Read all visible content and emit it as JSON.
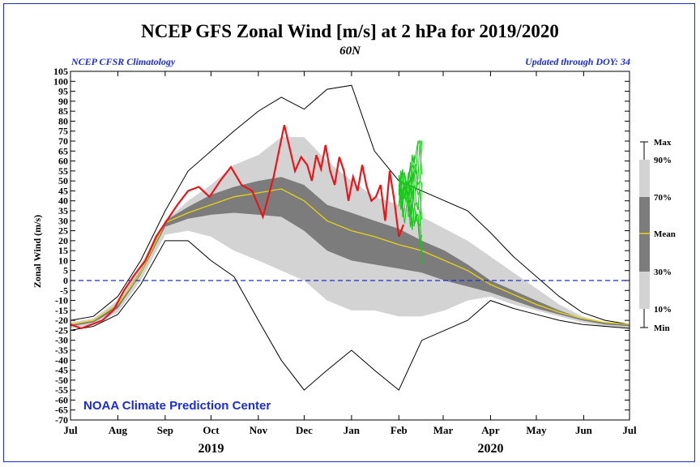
{
  "chart_data": {
    "type": "area",
    "title": "NCEP GFS Zonal Wind [m/s] at 2 hPa for 2019/2020",
    "subtitle": "60N",
    "left_note": "NCEP CFSR Climatology",
    "right_note": "Updated through DOY:  34",
    "credit": "NOAA Climate Prediction Center",
    "ylabel": "Zonal Wind (m/s)",
    "ylim": [
      -70,
      105
    ],
    "yticks": [
      "105",
      "100",
      "95",
      "90",
      "85",
      "80",
      "75",
      "70",
      "65",
      "60",
      "55",
      "50",
      "45",
      "40",
      "35",
      "30",
      "25",
      "20",
      "15",
      "10",
      "5",
      "0",
      "-5",
      "-10",
      "-15",
      "-20",
      "-25",
      "-30",
      "-35",
      "-40",
      "-45",
      "-50",
      "-55",
      "-60",
      "-65",
      "-70"
    ],
    "month_ticks": [
      "Jul",
      "Aug",
      "Sep",
      "Oct",
      "Nov",
      "Dec",
      "Jan",
      "Feb",
      "Mar",
      "Apr",
      "May",
      "Jun",
      "Jul"
    ],
    "years": [
      "2019",
      "2020"
    ],
    "x_day": [
      0,
      15,
      31,
      46,
      62,
      77,
      92,
      107,
      123,
      138,
      153,
      168,
      184,
      199,
      215,
      230,
      245,
      260,
      275,
      290,
      305,
      320,
      335,
      350,
      366
    ],
    "series": [
      {
        "name": "Max",
        "values": [
          -20,
          -18,
          -8,
          10,
          35,
          55,
          65,
          75,
          85,
          92,
          86,
          96,
          98,
          65,
          50,
          45,
          40,
          35,
          24,
          12,
          2,
          -8,
          -16,
          -20,
          -22
        ]
      },
      {
        "name": "90%",
        "values": [
          -21,
          -19,
          -10,
          8,
          30,
          40,
          48,
          58,
          63,
          72,
          72,
          60,
          50,
          42,
          38,
          32,
          26,
          20,
          12,
          4,
          -4,
          -12,
          -18,
          -21,
          -22
        ]
      },
      {
        "name": "70%",
        "values": [
          -22,
          -20,
          -12,
          5,
          30,
          37,
          43,
          47,
          50,
          52,
          48,
          38,
          34,
          30,
          26,
          20,
          15,
          8,
          0,
          -5,
          -10,
          -15,
          -19,
          -21,
          -22
        ]
      },
      {
        "name": "Mean",
        "values": [
          -22,
          -20,
          -12,
          4,
          29,
          34,
          38,
          42,
          44,
          46,
          40,
          30,
          25,
          22,
          18,
          15,
          10,
          5,
          -2,
          -7,
          -12,
          -16,
          -19,
          -21,
          -22
        ]
      },
      {
        "name": "30%",
        "values": [
          -23,
          -21,
          -14,
          3,
          27,
          31,
          33,
          34,
          33,
          32,
          25,
          15,
          10,
          8,
          6,
          4,
          0,
          -3,
          -6,
          -10,
          -14,
          -17,
          -20,
          -22,
          -23
        ]
      },
      {
        "name": "10%",
        "values": [
          -24,
          -22,
          -16,
          0,
          23,
          25,
          22,
          15,
          10,
          5,
          0,
          -10,
          -15,
          -15,
          -18,
          -18,
          -15,
          -10,
          -8,
          -12,
          -15,
          -18,
          -21,
          -23,
          -24
        ]
      },
      {
        "name": "Min",
        "values": [
          -25,
          -23,
          -17,
          -2,
          20,
          20,
          10,
          2,
          -20,
          -40,
          -55,
          -45,
          -35,
          -45,
          -55,
          -30,
          -25,
          -20,
          -10,
          -14,
          -17,
          -20,
          -22,
          -23,
          -24
        ]
      }
    ],
    "current_year": {
      "name": "2019/2020",
      "color": "#e8161a",
      "x_day": [
        0,
        7,
        14,
        21,
        28,
        35,
        42,
        49,
        56,
        63,
        70,
        77,
        84,
        91,
        98,
        105,
        112,
        119,
        126,
        133,
        140,
        147,
        151,
        155,
        158,
        161,
        164,
        167,
        170,
        173,
        176,
        179,
        182,
        185,
        188,
        191,
        194,
        197,
        200,
        203,
        206,
        209,
        212,
        215,
        218
      ],
      "values": [
        -22,
        -24,
        -22,
        -20,
        -15,
        -5,
        3,
        10,
        22,
        30,
        38,
        45,
        47,
        42,
        50,
        57,
        48,
        45,
        32,
        52,
        78,
        55,
        62,
        58,
        50,
        63,
        56,
        68,
        55,
        48,
        62,
        55,
        40,
        52,
        45,
        58,
        47,
        40,
        42,
        48,
        30,
        55,
        40,
        22,
        28
      ]
    },
    "ensemble": {
      "name": "GFS ensemble",
      "color": "#19c51a",
      "start_day": 215,
      "end_day": 230,
      "range": [
        5,
        70
      ]
    },
    "legend": {
      "labels": [
        "Max",
        "90%",
        "70%",
        "Mean",
        "30%",
        "10%",
        "Min"
      ],
      "placement": "right"
    }
  }
}
